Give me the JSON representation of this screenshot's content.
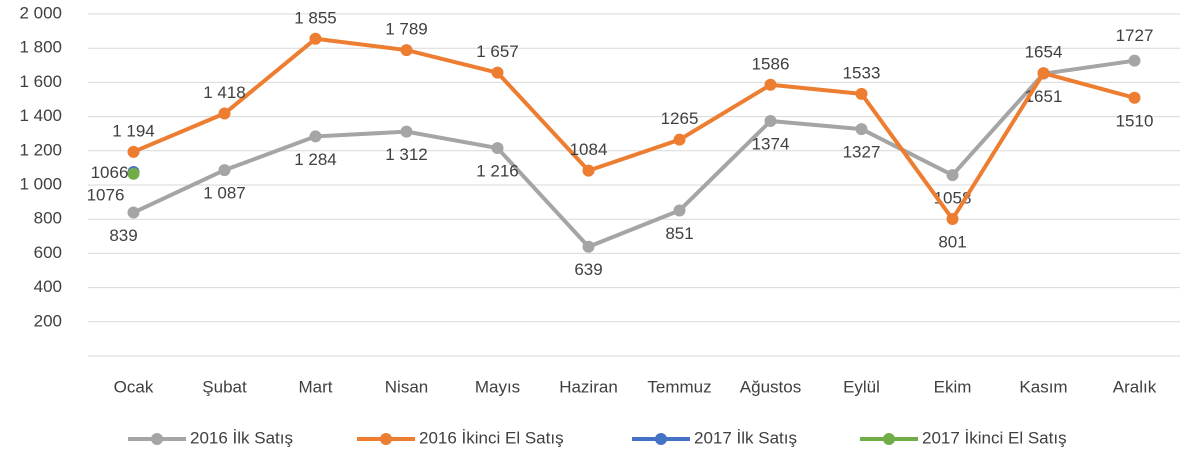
{
  "chart_data": {
    "type": "line",
    "categories": [
      "Ocak",
      "Şubat",
      "Mart",
      "Nisan",
      "Mayıs",
      "Haziran",
      "Temmuz",
      "Ağustos",
      "Eylül",
      "Ekim",
      "Kasım",
      "Aralık"
    ],
    "series": [
      {
        "name": "2016 İlk Satış",
        "color": "#a5a5a5",
        "values": [
          839,
          1087,
          1284,
          1312,
          1216,
          639,
          851,
          1374,
          1327,
          1058,
          1651,
          1727
        ],
        "value_labels": [
          "839",
          "1 087",
          "1 284",
          "1 312",
          "1 216",
          "639",
          "851",
          "1374",
          "1327",
          "1058",
          "1651",
          "1727"
        ]
      },
      {
        "name": "2016 İkinci El Satış",
        "color": "#ed7d31",
        "values": [
          1194,
          1418,
          1855,
          1789,
          1657,
          1084,
          1265,
          1586,
          1533,
          801,
          1654,
          1510
        ],
        "value_labels": [
          "1 194",
          "1 418",
          "1 855",
          "1 789",
          "1 657",
          "1084",
          "1265",
          "1586",
          "1533",
          "801",
          "1654",
          "1510"
        ]
      },
      {
        "name": "2017 İlk Satış",
        "color": "#4472c4",
        "values": [
          1076,
          null,
          null,
          null,
          null,
          null,
          null,
          null,
          null,
          null,
          null,
          null
        ]
      },
      {
        "name": "2017 İkinci El Satış",
        "color": "#70ad47",
        "values": [
          1066,
          null,
          null,
          null,
          null,
          null,
          null,
          null,
          null,
          null,
          null,
          null
        ]
      }
    ],
    "ylim": [
      0,
      2000
    ],
    "yticks": [
      {
        "value": 200,
        "label": "200"
      },
      {
        "value": 400,
        "label": "400"
      },
      {
        "value": 600,
        "label": "600"
      },
      {
        "value": 800,
        "label": "800"
      },
      {
        "value": 1000,
        "label": "1 000"
      },
      {
        "value": 1200,
        "label": "1 200"
      },
      {
        "value": 1400,
        "label": "1 400"
      },
      {
        "value": 1600,
        "label": "1 600"
      },
      {
        "value": 1800,
        "label": "1 800"
      },
      {
        "value": 2000,
        "label": "2 000"
      }
    ],
    "grid": true,
    "legend": "bottom"
  }
}
